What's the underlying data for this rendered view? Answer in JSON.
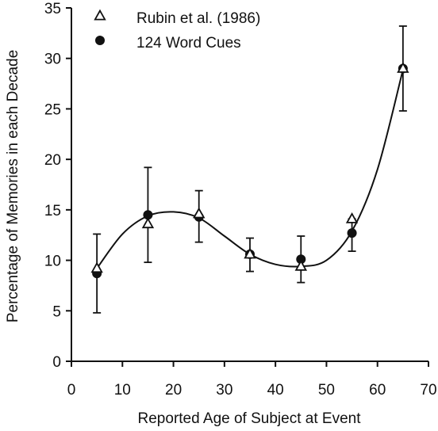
{
  "chart_data": {
    "type": "scatter",
    "title": "",
    "xlabel": "Reported Age of Subject at Event",
    "ylabel": "Percentage of Memories in each Decade",
    "xlim": [
      0,
      70
    ],
    "ylim": [
      0,
      35
    ],
    "x_ticks": [
      "0",
      "10",
      "20",
      "30",
      "40",
      "50",
      "60",
      "70"
    ],
    "y_ticks": [
      "0",
      "5",
      "10",
      "15",
      "20",
      "25",
      "30",
      "35"
    ],
    "grid": false,
    "legend_position": "top-left",
    "series": [
      {
        "name": "Rubin et al. (1986)",
        "marker": "open-triangle",
        "color": "#111111",
        "x": [
          5,
          15,
          25,
          35,
          45,
          55,
          65
        ],
        "y": [
          9.2,
          13.6,
          14.6,
          10.6,
          9.4,
          14.1,
          29.0
        ]
      },
      {
        "name": "124 Word Cues",
        "marker": "filled-circle",
        "color": "#111111",
        "x": [
          5,
          15,
          25,
          35,
          45,
          55,
          65
        ],
        "y": [
          8.7,
          14.5,
          14.3,
          10.6,
          10.1,
          12.7,
          29.0
        ],
        "error_low": [
          4.8,
          9.8,
          11.8,
          8.9,
          7.8,
          10.9,
          24.8
        ],
        "error_high": [
          12.6,
          19.2,
          16.9,
          12.2,
          12.4,
          14.1,
          33.2
        ]
      }
    ],
    "fit_curve": {
      "x": [
        5,
        10,
        15,
        20,
        25,
        30,
        35,
        40,
        45,
        50,
        55,
        60,
        65
      ],
      "y": [
        9.2,
        12.6,
        14.4,
        14.8,
        14.2,
        12.4,
        10.6,
        9.6,
        9.4,
        10.0,
        12.9,
        19.0,
        28.9
      ]
    },
    "colors": {
      "ink": "#111111",
      "background": "#ffffff"
    }
  }
}
